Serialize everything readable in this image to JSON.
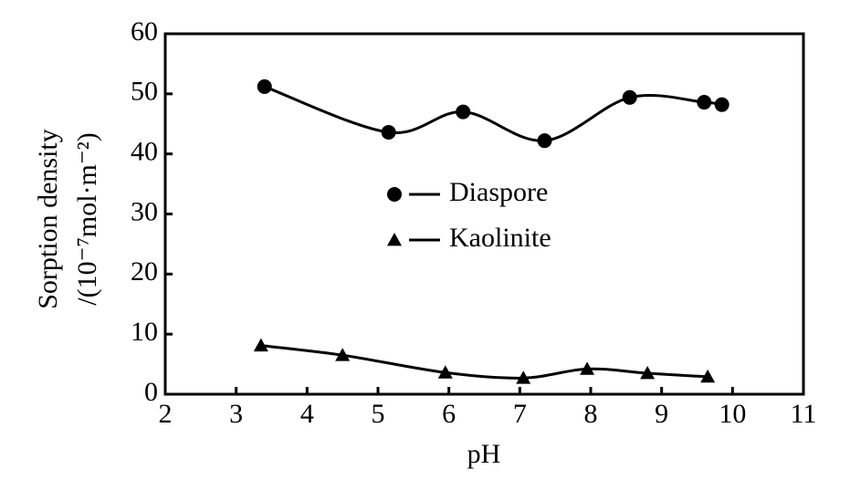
{
  "chart_data": {
    "type": "line",
    "xlabel": "pH",
    "ylabel": [
      "Sorption density",
      "/(10⁻⁷mol·m⁻²)"
    ],
    "xlim": [
      2,
      11
    ],
    "xticks": [
      2,
      3,
      4,
      5,
      6,
      7,
      8,
      9,
      10,
      11
    ],
    "ylim": [
      0,
      60
    ],
    "yticks": [
      0,
      10,
      20,
      30,
      40,
      50,
      60
    ],
    "legend": "center",
    "series": [
      {
        "name": "Diaspore",
        "color": "#000000",
        "marker": "circle",
        "x": [
          3.4,
          5.15,
          6.2,
          7.35,
          8.55,
          9.6,
          9.85
        ],
        "values": [
          51.2,
          43.6,
          47,
          42.2,
          49.4,
          48.6,
          48.2
        ]
      },
      {
        "name": "Kaolinite",
        "color": "#000000",
        "marker": "triangle",
        "x": [
          3.35,
          4.5,
          5.95,
          7.05,
          7.95,
          8.8,
          9.65
        ],
        "values": [
          8.1,
          6.5,
          3.6,
          2.7,
          4.2,
          3.5,
          2.9
        ]
      }
    ]
  }
}
